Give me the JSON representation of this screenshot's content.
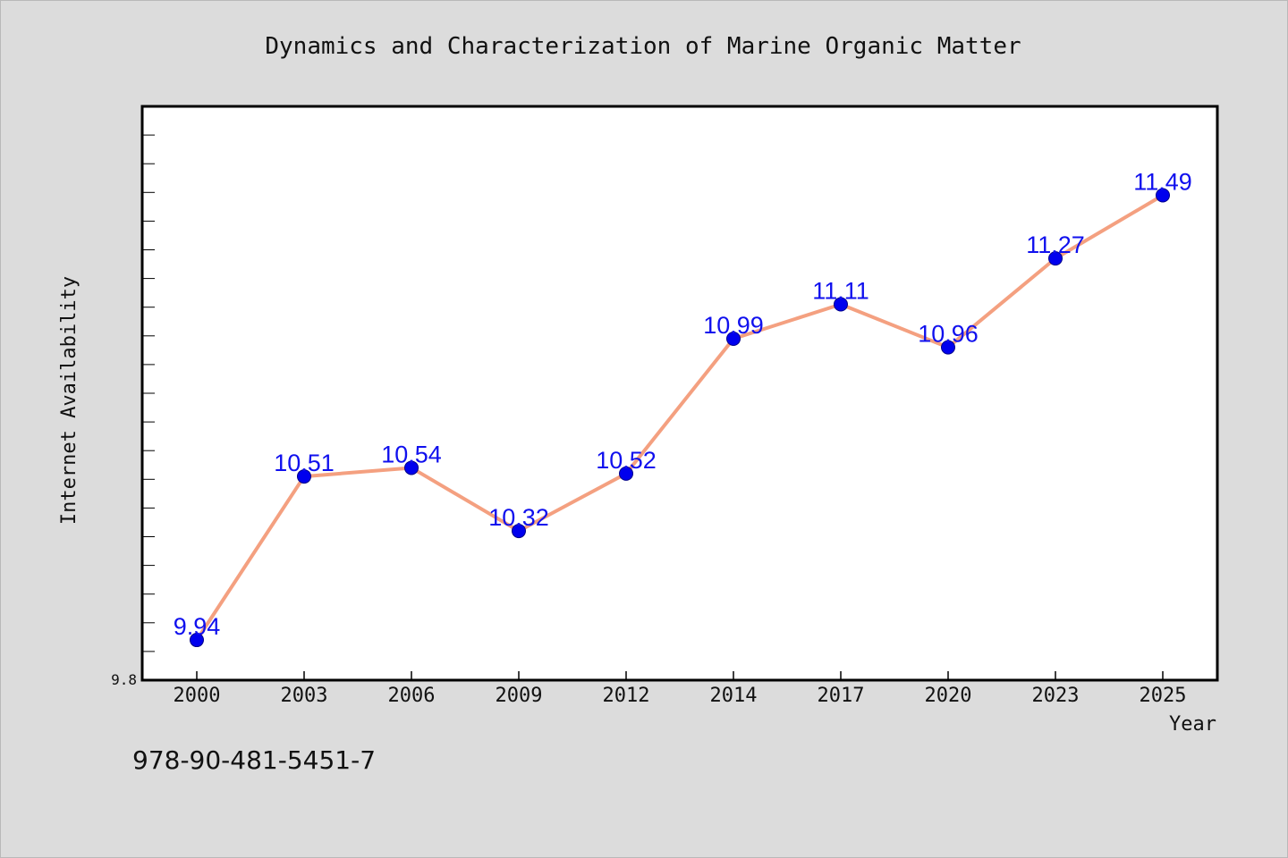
{
  "chart_data": {
    "type": "line",
    "title": "Dynamics and Characterization of Marine Organic Matter",
    "xlabel": "Year",
    "ylabel": "Internet Availability",
    "categories": [
      "2000",
      "2003",
      "2006",
      "2009",
      "2012",
      "2014",
      "2017",
      "2020",
      "2023",
      "2025"
    ],
    "series": [
      {
        "values": [
          9.94,
          10.51,
          10.54,
          10.32,
          10.52,
          10.99,
          11.11,
          10.96,
          11.27,
          11.49
        ],
        "data_labels": [
          "9.94",
          "10.51",
          "10.54",
          "10.32",
          "10.52",
          "10.99",
          "11.11",
          "10.96",
          "11.27",
          "11.49"
        ]
      }
    ],
    "ylim": [
      9.8,
      11.8
    ],
    "yticks_labeled": [
      "9.8"
    ],
    "grid": false,
    "colors": {
      "line": "#f4a080",
      "marker": "#0000ee",
      "data_label": "#1010ee",
      "plot_background": "#ffffff",
      "figure_background": "#dcdcdc"
    }
  },
  "footnote": "978-90-481-5451-7"
}
